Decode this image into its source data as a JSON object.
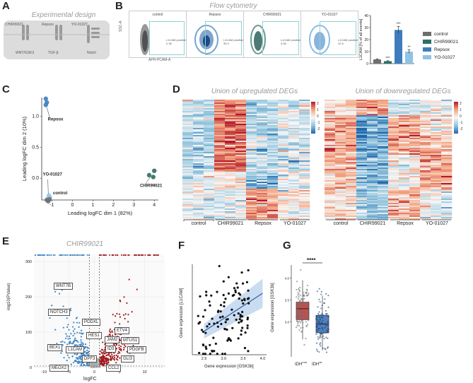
{
  "panels": {
    "A": {
      "label": "A",
      "title": "Experimental design",
      "compounds": [
        "CHIR99021",
        "Repsox",
        "YO-01027"
      ],
      "pathways": [
        "WNT/GSK3",
        "TGF-β",
        "Notch"
      ]
    },
    "B": {
      "label": "B",
      "title": "Flow cytometry",
      "plots": [
        {
          "name": "control",
          "note1": "L1CAM positive",
          "note2": "2.36"
        },
        {
          "name": "Repsox",
          "note1": "L1CAM positive",
          "note2": "35.3"
        },
        {
          "name": "CHIR99021",
          "note1": "L1CAM positive",
          "note2": "3.06"
        },
        {
          "name": "YO-01027",
          "note1": "L1CAM positive",
          "note2": "12.9"
        }
      ],
      "x_axis": "APH-PCAM-A",
      "y_axis": "SSC-A"
    },
    "C": {
      "label": "C",
      "xlabel": "Leading logFC dim 1 (82%)",
      "ylabel": "Leading logFC dim 2 (10%)",
      "xticks": [
        "-1",
        "0",
        "1",
        "2",
        "3",
        "4"
      ],
      "yticks": [
        "0.0",
        "0.5",
        "1.0"
      ],
      "group_labels": [
        "Repsox",
        "CHIR99021",
        "YO-01027",
        "control"
      ]
    },
    "D": {
      "label": "D",
      "title_up": "Union of upregulated DEGs",
      "title_down": "Union of downregulated DEGs",
      "groups": [
        "control",
        "CHIR99021",
        "Repsox",
        "YO-01027"
      ],
      "scale_up": [
        "2",
        "1",
        "0",
        "-1",
        "-2"
      ],
      "scale_down": [
        "2",
        "1",
        "0",
        "-1",
        "-2"
      ]
    },
    "E": {
      "label": "E",
      "title": "CHIR99021",
      "xlabel": "logFC",
      "ylabel": "-log10(PValue)",
      "xticks": [
        "-10",
        "-5",
        "0",
        "5",
        "10"
      ],
      "yticks": [
        "0",
        "100",
        "200",
        "300"
      ],
      "genes": [
        "WNT7B",
        "NOTCH3",
        "PODXL",
        "HES1",
        "BEX1",
        "L1CAM",
        "ID3",
        "DPF3",
        "JAM2",
        "ETV4",
        "MTUS1",
        "PDGFB",
        "GLI3",
        "MEOX2",
        "CCL2"
      ]
    },
    "F": {
      "label": "F",
      "xlabel": "Gene expression [GSK3b]",
      "ylabel": "Gene expression [L1CAM]",
      "xticks": [
        "2.5",
        "3.0",
        "3.5",
        "4.0"
      ]
    },
    "G": {
      "label": "G",
      "ylabel": "Gene expression [GSK3b]",
      "yticks": [
        "3.0",
        "3.5",
        "4.0"
      ],
      "categories": [
        "IDH",
        "IDH"
      ],
      "superscripts": [
        "mut",
        "wt"
      ],
      "significance": "****"
    }
  },
  "colors": {
    "control": "#6e6e6e",
    "chir": "#2f6e63",
    "repsox": "#3d7dbd",
    "yo": "#8fc3e8",
    "upregulated": "#a0181c",
    "downregulated": "#3b86c6"
  },
  "chart_data": [
    {
      "type": "bar",
      "ylabel": "L1CAM [% of all events]",
      "categories": [
        "control",
        "CHIR99021",
        "Repsox",
        "YO-01027"
      ],
      "values": [
        3.5,
        2.0,
        28.0,
        10.0
      ],
      "errors": [
        0.5,
        0.4,
        3.0,
        1.5
      ],
      "significance": [
        "",
        "***",
        "***",
        "**"
      ],
      "ylim": [
        0,
        40
      ],
      "yticks": [
        "0",
        "10",
        "20",
        "30",
        "40"
      ],
      "legend": [
        "control",
        "CHIR99021",
        "Repsox",
        "YO-01027"
      ]
    }
  ]
}
